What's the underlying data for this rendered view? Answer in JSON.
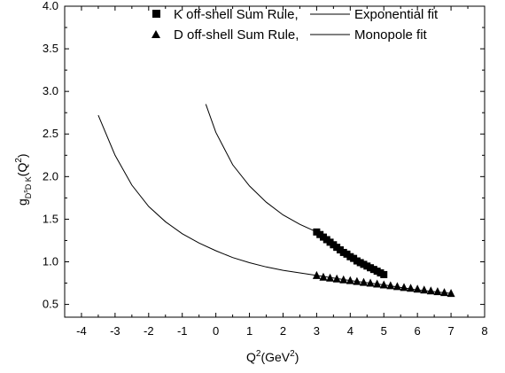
{
  "chart_data": {
    "type": "scatter",
    "xlabel_main": "Q",
    "xlabel_sup": "2",
    "xlabel_rest": "(GeV",
    "xlabel_sup2": "2",
    "xlabel_close": ")",
    "ylabel_main": "g",
    "ylabel_sub": "D",
    "ylabel_subsub": "s",
    "ylabel_sub2": "D K",
    "ylabel_rest": "(Q",
    "ylabel_sup": "2",
    "ylabel_close": ")",
    "xlim": [
      -4.5,
      8
    ],
    "ylim": [
      0.35,
      4.0
    ],
    "x_ticks": [
      -4,
      -3,
      -2,
      -1,
      0,
      1,
      2,
      3,
      4,
      5,
      6,
      7,
      8
    ],
    "y_ticks": [
      0.5,
      1.0,
      1.5,
      2.0,
      2.5,
      3.0,
      3.5,
      4.0
    ],
    "x_tick_labels": [
      "-4",
      "-3",
      "-2",
      "-1",
      "0",
      "1",
      "2",
      "3",
      "4",
      "5",
      "6",
      "7",
      "8"
    ],
    "y_tick_labels": [
      "0.5",
      "1.0",
      "1.5",
      "2.0",
      "2.5",
      "3.0",
      "3.5",
      "4.0"
    ],
    "legend_position": "top-right",
    "legend": [
      {
        "marker": "square",
        "label": "K off-shell Sum Rule,",
        "line_label": "Exponential fit"
      },
      {
        "marker": "triangle",
        "label": "D off-shell Sum Rule,",
        "line_label": "Monopole fit"
      }
    ],
    "series": [
      {
        "name": "K off-shell Sum Rule",
        "marker": "square",
        "x": [
          3.0,
          3.1,
          3.2,
          3.3,
          3.4,
          3.5,
          3.6,
          3.7,
          3.8,
          3.9,
          4.0,
          4.1,
          4.2,
          4.3,
          4.4,
          4.5,
          4.6,
          4.7,
          4.8,
          4.9,
          5.0
        ],
        "y": [
          1.35,
          1.32,
          1.29,
          1.26,
          1.23,
          1.2,
          1.17,
          1.14,
          1.11,
          1.09,
          1.06,
          1.04,
          1.01,
          0.99,
          0.97,
          0.95,
          0.93,
          0.91,
          0.89,
          0.87,
          0.85
        ]
      },
      {
        "name": "D off-shell Sum Rule",
        "marker": "triangle",
        "x": [
          3.0,
          3.2,
          3.4,
          3.6,
          3.8,
          4.0,
          4.2,
          4.4,
          4.6,
          4.8,
          5.0,
          5.2,
          5.4,
          5.6,
          5.8,
          6.0,
          6.2,
          6.4,
          6.6,
          6.8,
          7.0
        ],
        "y": [
          0.84,
          0.82,
          0.81,
          0.8,
          0.79,
          0.78,
          0.77,
          0.76,
          0.75,
          0.74,
          0.73,
          0.72,
          0.71,
          0.7,
          0.69,
          0.68,
          0.67,
          0.66,
          0.65,
          0.64,
          0.63
        ]
      },
      {
        "name": "Exponential fit",
        "line": true,
        "x": [
          -0.3,
          0.0,
          0.5,
          1.0,
          1.5,
          2.0,
          2.5,
          3.0
        ],
        "y": [
          2.85,
          2.52,
          2.14,
          1.89,
          1.7,
          1.55,
          1.44,
          1.35
        ]
      },
      {
        "name": "Monopole fit",
        "line": true,
        "x": [
          -3.5,
          -3.0,
          -2.5,
          -2.0,
          -1.5,
          -1.0,
          -0.5,
          0.0,
          0.5,
          1.0,
          1.5,
          2.0,
          2.5,
          3.0,
          4.0,
          5.0,
          6.0,
          7.0
        ],
        "y": [
          2.72,
          2.25,
          1.9,
          1.65,
          1.47,
          1.33,
          1.22,
          1.13,
          1.05,
          0.99,
          0.94,
          0.9,
          0.87,
          0.84,
          0.78,
          0.73,
          0.67,
          0.63
        ]
      }
    ]
  }
}
